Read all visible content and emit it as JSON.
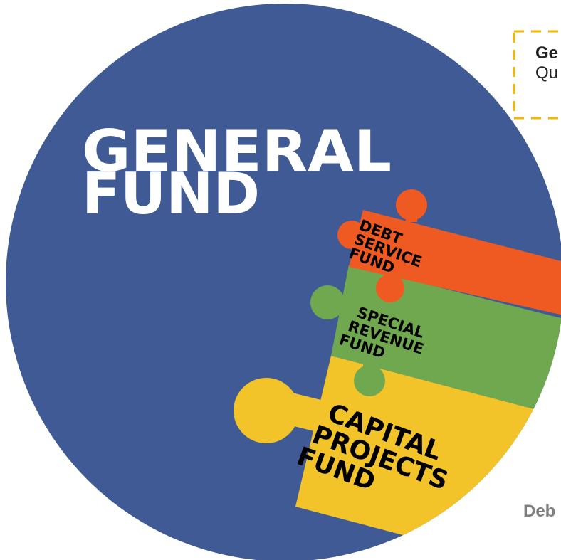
{
  "title_lines": [
    "GENERAL",
    "FUND"
  ],
  "pieces": [
    {
      "lines": [
        "DEBT",
        "SERVICE",
        "FUND"
      ]
    },
    {
      "lines": [
        "SPECIAL",
        "REVENUE",
        "FUND"
      ]
    },
    {
      "lines": [
        "CAPITAL",
        "PROJECTS",
        "FUND"
      ]
    }
  ],
  "callout": {
    "title": "Ge",
    "text": "Qu"
  },
  "footer": "Deb"
}
